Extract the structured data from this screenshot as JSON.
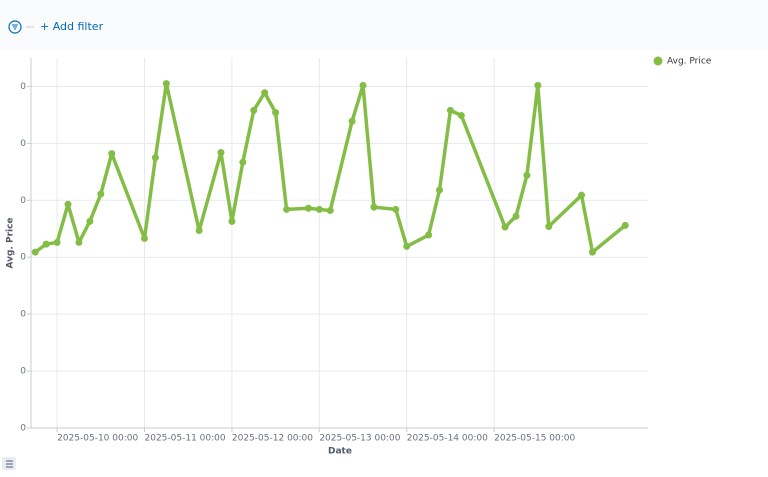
{
  "filter_bar": {
    "add_filter": "+ Add filter"
  },
  "chart_data": {
    "type": "line",
    "xlabel": "Date",
    "ylabel": "Avg. Price",
    "x": [
      "2025-05-09 18:00",
      "2025-05-09 21:00",
      "2025-05-10 00:00",
      "2025-05-10 03:00",
      "2025-05-10 06:00",
      "2025-05-10 09:00",
      "2025-05-10 12:00",
      "2025-05-10 15:00",
      "2025-05-11 00:00",
      "2025-05-11 03:00",
      "2025-05-11 06:00",
      "2025-05-11 15:00",
      "2025-05-11 21:00",
      "2025-05-12 00:00",
      "2025-05-12 03:00",
      "2025-05-12 06:00",
      "2025-05-12 09:00",
      "2025-05-12 12:00",
      "2025-05-12 15:00",
      "2025-05-12 21:00",
      "2025-05-13 00:00",
      "2025-05-13 03:00",
      "2025-05-13 09:00",
      "2025-05-13 12:00",
      "2025-05-13 15:00",
      "2025-05-13 21:00",
      "2025-05-14 00:00",
      "2025-05-14 06:00",
      "2025-05-14 09:00",
      "2025-05-14 12:00",
      "2025-05-14 15:00",
      "2025-05-15 03:00",
      "2025-05-15 06:00",
      "2025-05-15 09:00",
      "2025-05-15 12:00",
      "2025-05-15 15:00",
      "2025-05-16 00:00",
      "2025-05-16 03:00",
      "2025-05-16 12:00"
    ],
    "series": [
      {
        "name": "Avg. Price",
        "color": "#84bd45",
        "values": [
          3.09,
          3.23,
          3.26,
          3.93,
          3.26,
          3.63,
          4.11,
          4.82,
          3.33,
          4.75,
          6.05,
          3.47,
          4.84,
          3.63,
          4.67,
          5.58,
          5.89,
          5.54,
          3.84,
          3.86,
          3.84,
          3.82,
          5.39,
          6.02,
          3.88,
          3.84,
          3.19,
          3.39,
          4.18,
          5.58,
          5.49,
          3.53,
          3.72,
          4.44,
          6.02,
          3.54,
          4.09,
          3.09,
          3.56
        ]
      }
    ],
    "xlim": [
      "2025-05-09 16:50",
      "2025-05-16 18:15"
    ],
    "xticks": [
      "2025-05-10 00:00",
      "2025-05-11 00:00",
      "2025-05-12 00:00",
      "2025-05-13 00:00",
      "2025-05-14 00:00",
      "2025-05-15 00:00"
    ],
    "ylim": [
      0,
      6.5
    ],
    "yticks": [
      0,
      {
        "value": 1,
        "label": "0"
      },
      {
        "value": 2,
        "label": "0"
      },
      {
        "value": 3,
        "label": "0"
      },
      {
        "value": 4,
        "label": "0"
      },
      {
        "value": 5,
        "label": "0"
      },
      {
        "value": 6,
        "label": "0"
      }
    ],
    "grid": true,
    "legend": "right"
  }
}
